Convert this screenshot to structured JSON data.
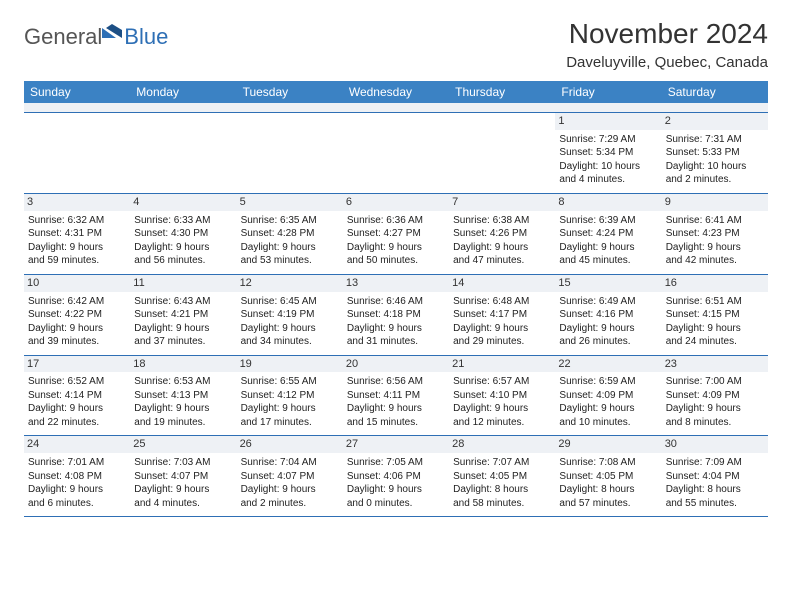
{
  "logo": {
    "part1": "General",
    "part2": "Blue"
  },
  "title": "November 2024",
  "location": "Daveluyville, Quebec, Canada",
  "weekdays": [
    "Sunday",
    "Monday",
    "Tuesday",
    "Wednesday",
    "Thursday",
    "Friday",
    "Saturday"
  ],
  "colors": {
    "header_bg": "#3b82c4",
    "accent": "#2e6fb5",
    "daynum_bg": "#eef1f5"
  },
  "weeks": [
    [
      {
        "n": "",
        "empty": true
      },
      {
        "n": "",
        "empty": true
      },
      {
        "n": "",
        "empty": true
      },
      {
        "n": "",
        "empty": true
      },
      {
        "n": "",
        "empty": true
      },
      {
        "n": "1",
        "sunrise": "7:29 AM",
        "sunset": "5:34 PM",
        "dl1": "Daylight: 10 hours",
        "dl2": "and 4 minutes."
      },
      {
        "n": "2",
        "sunrise": "7:31 AM",
        "sunset": "5:33 PM",
        "dl1": "Daylight: 10 hours",
        "dl2": "and 2 minutes."
      }
    ],
    [
      {
        "n": "3",
        "sunrise": "6:32 AM",
        "sunset": "4:31 PM",
        "dl1": "Daylight: 9 hours",
        "dl2": "and 59 minutes."
      },
      {
        "n": "4",
        "sunrise": "6:33 AM",
        "sunset": "4:30 PM",
        "dl1": "Daylight: 9 hours",
        "dl2": "and 56 minutes."
      },
      {
        "n": "5",
        "sunrise": "6:35 AM",
        "sunset": "4:28 PM",
        "dl1": "Daylight: 9 hours",
        "dl2": "and 53 minutes."
      },
      {
        "n": "6",
        "sunrise": "6:36 AM",
        "sunset": "4:27 PM",
        "dl1": "Daylight: 9 hours",
        "dl2": "and 50 minutes."
      },
      {
        "n": "7",
        "sunrise": "6:38 AM",
        "sunset": "4:26 PM",
        "dl1": "Daylight: 9 hours",
        "dl2": "and 47 minutes."
      },
      {
        "n": "8",
        "sunrise": "6:39 AM",
        "sunset": "4:24 PM",
        "dl1": "Daylight: 9 hours",
        "dl2": "and 45 minutes."
      },
      {
        "n": "9",
        "sunrise": "6:41 AM",
        "sunset": "4:23 PM",
        "dl1": "Daylight: 9 hours",
        "dl2": "and 42 minutes."
      }
    ],
    [
      {
        "n": "10",
        "sunrise": "6:42 AM",
        "sunset": "4:22 PM",
        "dl1": "Daylight: 9 hours",
        "dl2": "and 39 minutes."
      },
      {
        "n": "11",
        "sunrise": "6:43 AM",
        "sunset": "4:21 PM",
        "dl1": "Daylight: 9 hours",
        "dl2": "and 37 minutes."
      },
      {
        "n": "12",
        "sunrise": "6:45 AM",
        "sunset": "4:19 PM",
        "dl1": "Daylight: 9 hours",
        "dl2": "and 34 minutes."
      },
      {
        "n": "13",
        "sunrise": "6:46 AM",
        "sunset": "4:18 PM",
        "dl1": "Daylight: 9 hours",
        "dl2": "and 31 minutes."
      },
      {
        "n": "14",
        "sunrise": "6:48 AM",
        "sunset": "4:17 PM",
        "dl1": "Daylight: 9 hours",
        "dl2": "and 29 minutes."
      },
      {
        "n": "15",
        "sunrise": "6:49 AM",
        "sunset": "4:16 PM",
        "dl1": "Daylight: 9 hours",
        "dl2": "and 26 minutes."
      },
      {
        "n": "16",
        "sunrise": "6:51 AM",
        "sunset": "4:15 PM",
        "dl1": "Daylight: 9 hours",
        "dl2": "and 24 minutes."
      }
    ],
    [
      {
        "n": "17",
        "sunrise": "6:52 AM",
        "sunset": "4:14 PM",
        "dl1": "Daylight: 9 hours",
        "dl2": "and 22 minutes."
      },
      {
        "n": "18",
        "sunrise": "6:53 AM",
        "sunset": "4:13 PM",
        "dl1": "Daylight: 9 hours",
        "dl2": "and 19 minutes."
      },
      {
        "n": "19",
        "sunrise": "6:55 AM",
        "sunset": "4:12 PM",
        "dl1": "Daylight: 9 hours",
        "dl2": "and 17 minutes."
      },
      {
        "n": "20",
        "sunrise": "6:56 AM",
        "sunset": "4:11 PM",
        "dl1": "Daylight: 9 hours",
        "dl2": "and 15 minutes."
      },
      {
        "n": "21",
        "sunrise": "6:57 AM",
        "sunset": "4:10 PM",
        "dl1": "Daylight: 9 hours",
        "dl2": "and 12 minutes."
      },
      {
        "n": "22",
        "sunrise": "6:59 AM",
        "sunset": "4:09 PM",
        "dl1": "Daylight: 9 hours",
        "dl2": "and 10 minutes."
      },
      {
        "n": "23",
        "sunrise": "7:00 AM",
        "sunset": "4:09 PM",
        "dl1": "Daylight: 9 hours",
        "dl2": "and 8 minutes."
      }
    ],
    [
      {
        "n": "24",
        "sunrise": "7:01 AM",
        "sunset": "4:08 PM",
        "dl1": "Daylight: 9 hours",
        "dl2": "and 6 minutes."
      },
      {
        "n": "25",
        "sunrise": "7:03 AM",
        "sunset": "4:07 PM",
        "dl1": "Daylight: 9 hours",
        "dl2": "and 4 minutes."
      },
      {
        "n": "26",
        "sunrise": "7:04 AM",
        "sunset": "4:07 PM",
        "dl1": "Daylight: 9 hours",
        "dl2": "and 2 minutes."
      },
      {
        "n": "27",
        "sunrise": "7:05 AM",
        "sunset": "4:06 PM",
        "dl1": "Daylight: 9 hours",
        "dl2": "and 0 minutes."
      },
      {
        "n": "28",
        "sunrise": "7:07 AM",
        "sunset": "4:05 PM",
        "dl1": "Daylight: 8 hours",
        "dl2": "and 58 minutes."
      },
      {
        "n": "29",
        "sunrise": "7:08 AM",
        "sunset": "4:05 PM",
        "dl1": "Daylight: 8 hours",
        "dl2": "and 57 minutes."
      },
      {
        "n": "30",
        "sunrise": "7:09 AM",
        "sunset": "4:04 PM",
        "dl1": "Daylight: 8 hours",
        "dl2": "and 55 minutes."
      }
    ]
  ]
}
